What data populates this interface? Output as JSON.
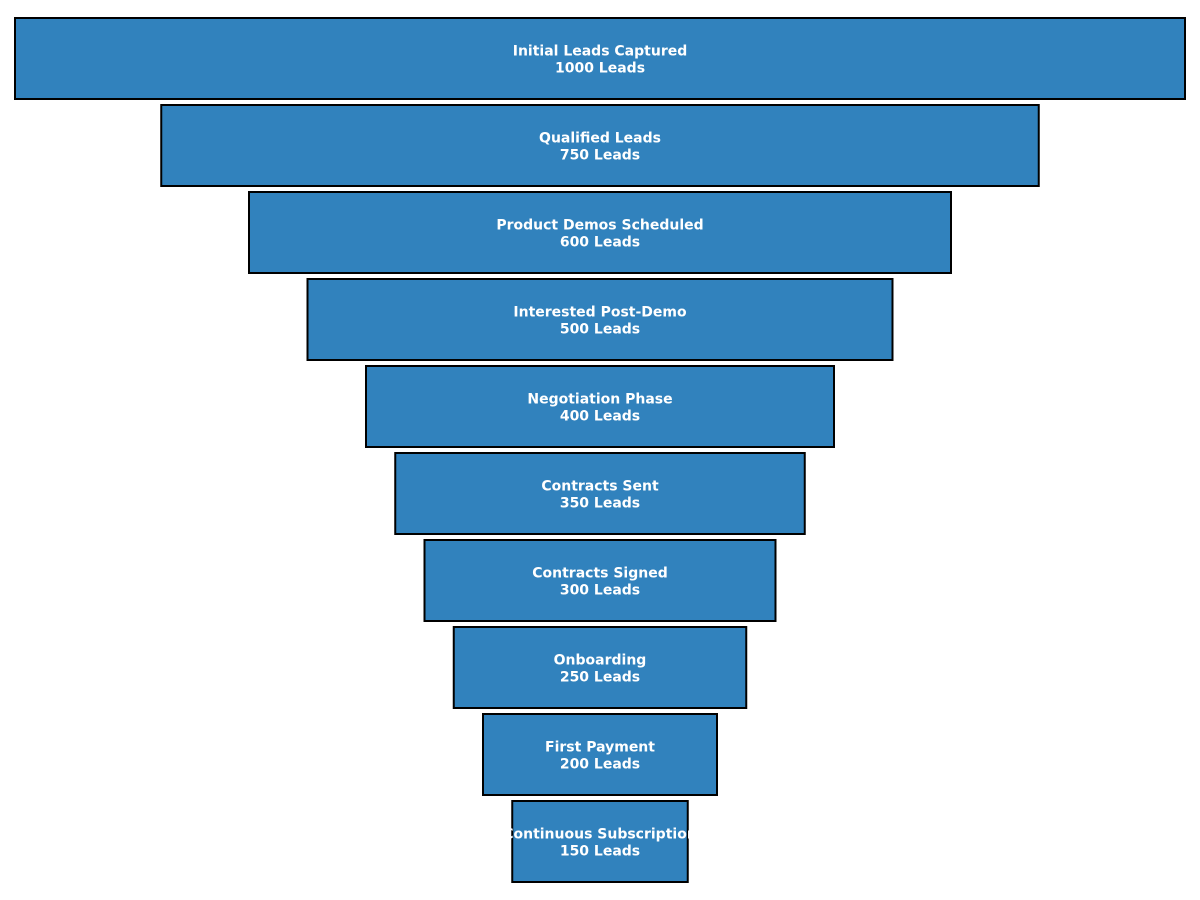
{
  "chart_data": {
    "type": "bar",
    "orientation": "horizontal",
    "layout": "centered-funnel",
    "unit_suffix": "Leads",
    "categories": [
      "Initial Leads Captured",
      "Qualified Leads",
      "Product Demos Scheduled",
      "Interested Post-Demo",
      "Negotiation Phase",
      "Contracts Sent",
      "Contracts Signed",
      "Onboarding",
      "First Payment",
      "Continuous Subscription"
    ],
    "values": [
      1000,
      750,
      600,
      500,
      400,
      350,
      300,
      250,
      200,
      150
    ],
    "value_labels": [
      "1000 Leads",
      "750 Leads",
      "600 Leads",
      "500 Leads",
      "400 Leads",
      "350 Leads",
      "300 Leads",
      "250 Leads",
      "200 Leads",
      "150 Leads"
    ],
    "title": "",
    "xlabel": "",
    "ylabel": "",
    "grid": false,
    "legend": "none",
    "bar_color": "#3182bd",
    "edge_color": "#000000",
    "label_color": "#ffffff"
  }
}
